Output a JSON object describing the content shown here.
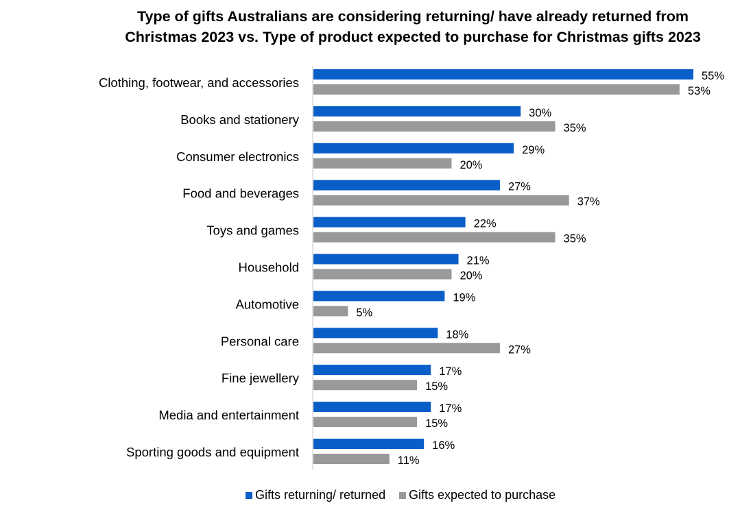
{
  "chart_data": {
    "type": "bar",
    "orientation": "horizontal",
    "title_lines": [
      "Type of gifts Australians are considering returning/ have already returned from",
      "Christmas 2023 vs. Type of product expected to purchase for Christmas gifts 2023"
    ],
    "categories": [
      "Clothing, footwear, and accessories",
      "Books and stationery",
      "Consumer electronics",
      "Food and beverages",
      "Toys and games",
      "Household",
      "Automotive",
      "Personal care",
      "Fine jewellery",
      "Media and entertainment",
      "Sporting goods and equipment"
    ],
    "series": [
      {
        "name": "Gifts returning/ returned",
        "color": "#0a5ec8",
        "values": [
          55,
          30,
          29,
          27,
          22,
          21,
          19,
          18,
          17,
          17,
          16
        ]
      },
      {
        "name": "Gifts expected to purchase",
        "color": "#999999",
        "values": [
          53,
          35,
          20,
          37,
          35,
          20,
          5,
          27,
          15,
          15,
          11
        ]
      }
    ],
    "value_suffix": "%",
    "xlim": [
      0,
      55
    ],
    "grid": false,
    "legend_position": "bottom-center"
  }
}
